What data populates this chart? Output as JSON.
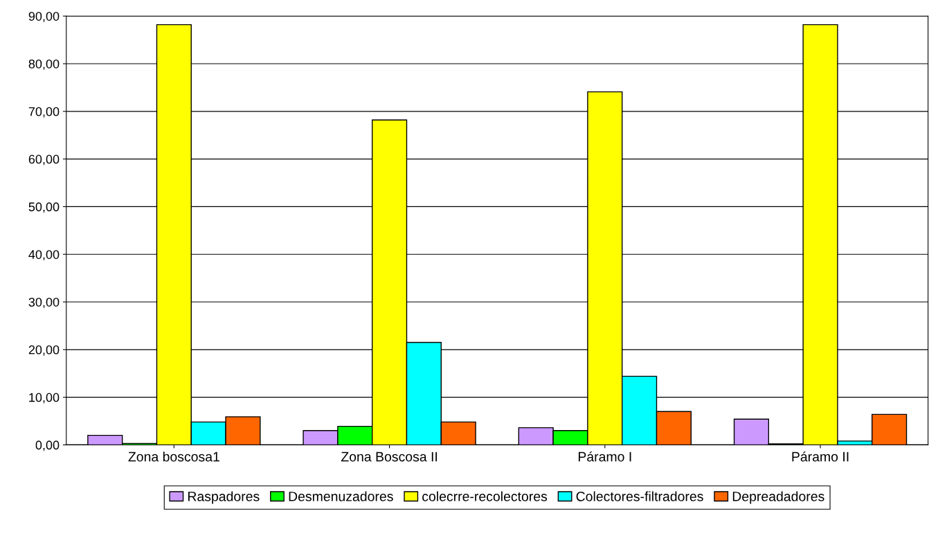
{
  "chart_data": {
    "type": "bar",
    "categories": [
      "Zona boscosa1",
      "Zona Boscosa II",
      "Páramo I",
      "Páramo II"
    ],
    "series": [
      {
        "name": "Raspadores",
        "color": "#cc99ff",
        "values": [
          2.0,
          3.0,
          3.6,
          5.4
        ]
      },
      {
        "name": "Desmenuzadores",
        "color": "#00ff00",
        "values": [
          0.3,
          3.9,
          3.0,
          0.2
        ]
      },
      {
        "name": "colecrre-recolectores",
        "color": "#ffff00",
        "values": [
          88.2,
          68.2,
          74.1,
          88.2
        ]
      },
      {
        "name": "Colectores-filtradores",
        "color": "#00ffff",
        "values": [
          4.8,
          21.5,
          14.4,
          0.8
        ]
      },
      {
        "name": "Depreadadores",
        "color": "#ff6600",
        "values": [
          5.9,
          4.8,
          7.0,
          6.4
        ]
      }
    ],
    "ylim": [
      0,
      90
    ],
    "yticks": [
      {
        "value": 0,
        "label": "0,00"
      },
      {
        "value": 10,
        "label": "10,00"
      },
      {
        "value": 20,
        "label": "20,00"
      },
      {
        "value": 30,
        "label": "30,00"
      },
      {
        "value": 40,
        "label": "40,00"
      },
      {
        "value": 50,
        "label": "50,00"
      },
      {
        "value": 60,
        "label": "60,00"
      },
      {
        "value": 70,
        "label": "70,00"
      },
      {
        "value": 80,
        "label": "80,00"
      },
      {
        "value": 90,
        "label": "90,00"
      }
    ],
    "grid": "y",
    "legend": "bottom"
  }
}
